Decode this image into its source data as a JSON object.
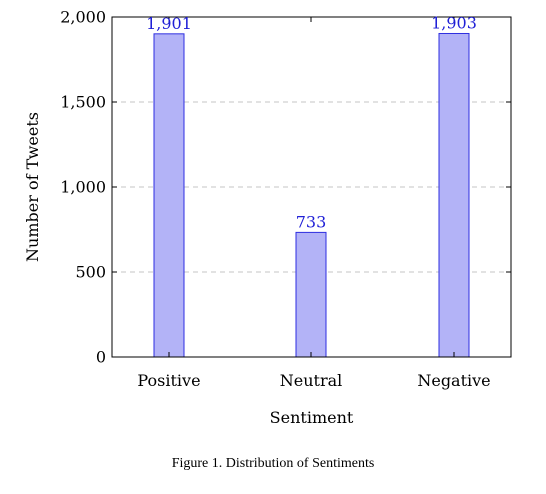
{
  "caption": "Figure 1. Distribution of Sentiments",
  "colors": {
    "bar_fill": "#b3b3f7",
    "bar_stroke": "#2e2ee0",
    "data_label": "#1f1fd6",
    "grid": "#b4b4b4",
    "axis": "#000000"
  },
  "chart_data": {
    "type": "bar",
    "title": "",
    "xlabel": "Sentiment",
    "ylabel": "Number of Tweets",
    "categories": [
      "Positive",
      "Neutral",
      "Negative"
    ],
    "values": [
      1901,
      733,
      1903
    ],
    "data_labels": [
      "1,901",
      "733",
      "1,903"
    ],
    "ylim": [
      0,
      2000
    ],
    "yticks": [
      0,
      500,
      1000,
      1500,
      2000
    ],
    "ytick_labels": [
      "0",
      "500",
      "1,000",
      "1,500",
      "2,000"
    ],
    "grid": "horizontal dashed",
    "legend": "none"
  }
}
